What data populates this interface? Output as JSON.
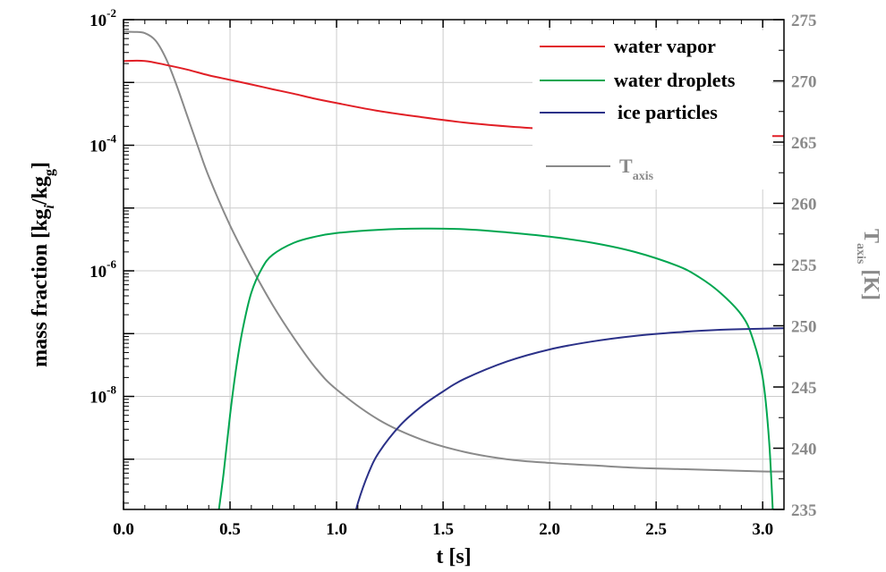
{
  "chart_data": {
    "type": "line",
    "xlabel": "t [s]",
    "ylabel": {
      "main": "mass fraction [kg",
      "sub_i": "i",
      "mid": "/kg",
      "sub_g": "g",
      "end": "]"
    },
    "y2label": {
      "main": "T",
      "sub": "axis",
      "end": " [K]"
    },
    "xlim": [
      0.0,
      3.1
    ],
    "ylim_log10": [
      -9.8,
      -2
    ],
    "y2lim": [
      235,
      275
    ],
    "grid": true,
    "legend_position": "top-right",
    "x_ticks": [
      "0.0",
      "0.5",
      "1.0",
      "1.5",
      "2.0",
      "2.5",
      "3.0"
    ],
    "x_tick_values": [
      0.0,
      0.5,
      1.0,
      1.5,
      2.0,
      2.5,
      3.0
    ],
    "y_ticks": [
      {
        "value_log10": -2,
        "base": "10",
        "exp": "-2"
      },
      {
        "value_log10": -4,
        "base": "10",
        "exp": "-4"
      },
      {
        "value_log10": -6,
        "base": "10",
        "exp": "-6"
      },
      {
        "value_log10": -8,
        "base": "10",
        "exp": "-8"
      }
    ],
    "y2_ticks": [
      "275",
      "270",
      "265",
      "260",
      "255",
      "250",
      "245",
      "240",
      "235"
    ],
    "y2_tick_values": [
      275,
      270,
      265,
      260,
      255,
      250,
      245,
      240,
      235
    ],
    "series": [
      {
        "name": "water vapor",
        "color": "#e11f26",
        "axis": "left",
        "x": [
          0.0,
          0.1,
          0.2,
          0.3,
          0.4,
          0.5,
          0.6,
          0.7,
          0.8,
          0.9,
          1.0,
          1.2,
          1.4,
          1.6,
          1.8,
          2.0,
          2.2,
          2.4,
          2.6,
          2.8,
          3.0,
          3.1
        ],
        "y": [
          0.0022,
          0.0022,
          0.0019,
          0.0016,
          0.0013,
          0.0011,
          0.00093,
          0.00078,
          0.00066,
          0.00055,
          0.00047,
          0.00035,
          0.00028,
          0.00023,
          0.0002,
          0.00018,
          0.000165,
          0.000155,
          0.000148,
          0.000143,
          0.00014,
          0.00014
        ]
      },
      {
        "name": "water droplets",
        "color": "#00a650",
        "axis": "left",
        "x": [
          0.44,
          0.47,
          0.5,
          0.53,
          0.56,
          0.6,
          0.65,
          0.7,
          0.8,
          0.9,
          1.0,
          1.2,
          1.4,
          1.6,
          1.8,
          2.0,
          2.2,
          2.4,
          2.6,
          2.7,
          2.8,
          2.9,
          2.95,
          3.0,
          3.03,
          3.05
        ],
        "y": [
          1e-10,
          6e-10,
          5e-09,
          3e-08,
          1.2e-07,
          4.5e-07,
          1.1e-06,
          1.8e-06,
          2.8e-06,
          3.5e-06,
          4e-06,
          4.5e-06,
          4.7e-06,
          4.6e-06,
          4.1e-06,
          3.5e-06,
          2.8e-06,
          2e-06,
          1.2e-06,
          8e-07,
          4.5e-07,
          2e-07,
          9e-08,
          2e-08,
          2e-09,
          1e-10
        ]
      },
      {
        "name": "ice particles",
        "color": "#2b3188",
        "axis": "left",
        "x": [
          1.08,
          1.1,
          1.15,
          1.2,
          1.3,
          1.4,
          1.5,
          1.6,
          1.8,
          2.0,
          2.2,
          2.4,
          2.6,
          2.8,
          3.0,
          3.1
        ],
        "y": [
          1e-10,
          2e-10,
          6e-10,
          1.3e-09,
          3.5e-09,
          7e-09,
          1.2e-08,
          1.9e-08,
          3.6e-08,
          5.6e-08,
          7.5e-08,
          9.2e-08,
          1.05e-07,
          1.15e-07,
          1.2e-07,
          1.22e-07
        ]
      },
      {
        "name": "T",
        "name_sub": "axis",
        "color": "#8a8a8a",
        "axis": "right",
        "x": [
          0.0,
          0.05,
          0.1,
          0.15,
          0.2,
          0.25,
          0.3,
          0.35,
          0.4,
          0.5,
          0.6,
          0.7,
          0.8,
          0.9,
          1.0,
          1.2,
          1.4,
          1.6,
          1.8,
          2.0,
          2.2,
          2.4,
          2.6,
          2.8,
          3.0,
          3.1
        ],
        "y": [
          274.0,
          274.0,
          273.9,
          273.3,
          271.8,
          269.6,
          267.1,
          264.6,
          262.2,
          258.2,
          254.8,
          251.7,
          249.0,
          246.6,
          244.8,
          242.3,
          240.7,
          239.7,
          239.1,
          238.8,
          238.6,
          238.4,
          238.3,
          238.2,
          238.1,
          238.1
        ]
      }
    ]
  }
}
